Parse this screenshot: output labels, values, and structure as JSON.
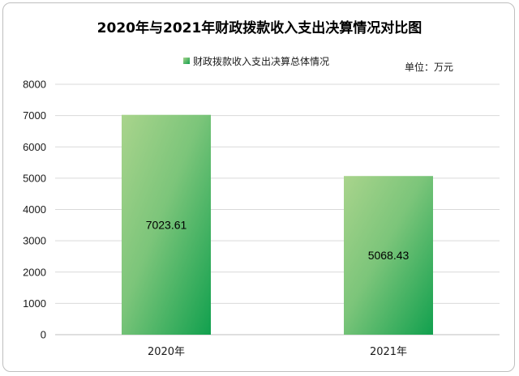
{
  "chart_data": {
    "type": "bar",
    "title": "2020年与2021年财政拨款收入支出决算情况对比图",
    "unit": "单位：万元",
    "categories": [
      "2020年",
      "2021年"
    ],
    "series": [
      {
        "name": "财政拨款收入支出决算总体情况",
        "values": [
          7023.61,
          5068.43
        ]
      }
    ],
    "data_labels": [
      "7023.61",
      "5068.43"
    ],
    "ylim": [
      0,
      8000
    ],
    "yticks": [
      0,
      1000,
      2000,
      3000,
      4000,
      5000,
      6000,
      7000,
      8000
    ],
    "grid": true,
    "legend_position": "top",
    "colors": {
      "bar_top": "#a9d48c",
      "bar_bottom": "#11a04e",
      "grid": "#d9d9d9",
      "axis": "#bfbfbf"
    }
  }
}
